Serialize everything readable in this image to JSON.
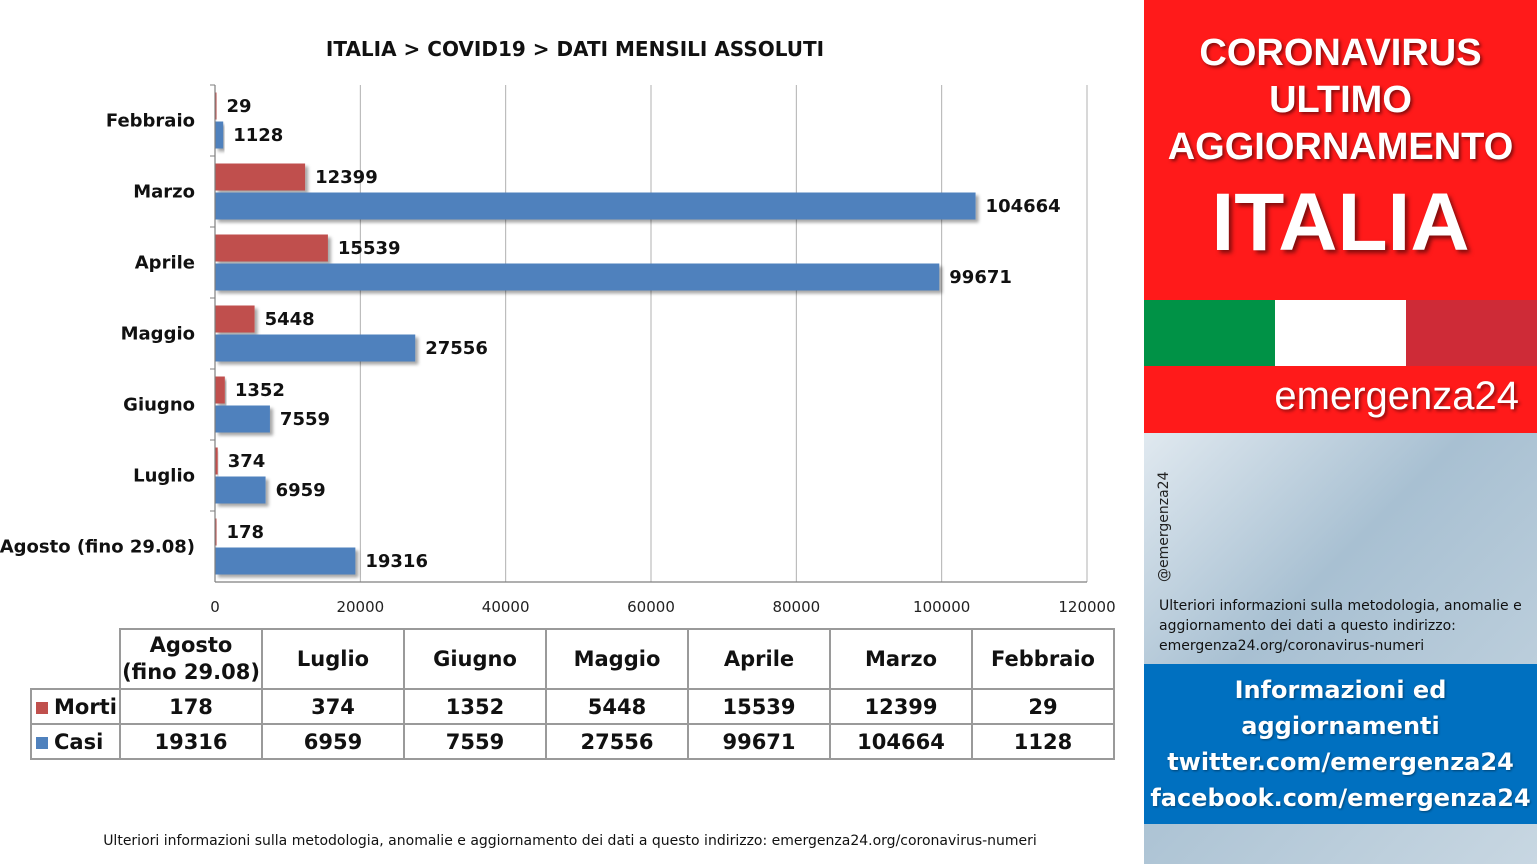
{
  "chart_data": {
    "type": "bar",
    "orientation": "horizontal",
    "title": "ITALIA >  COVID19 > DATI MENSILI  ASSOLUTI",
    "categories": [
      "Febbraio",
      "Marzo",
      "Aprile",
      "Maggio",
      "Giugno",
      "Luglio",
      "Agosto (fino 29.08)"
    ],
    "series": [
      {
        "name": "Morti",
        "color": "#c0504d",
        "values": [
          29,
          12399,
          15539,
          5448,
          1352,
          374,
          178
        ]
      },
      {
        "name": "Casi",
        "color": "#4f81bd",
        "values": [
          1128,
          104664,
          99671,
          27556,
          7559,
          6959,
          19316
        ]
      }
    ],
    "xlim": [
      0,
      120000
    ],
    "x_ticks": [
      "0",
      "20000",
      "40000",
      "60000",
      "80000",
      "100000",
      "120000"
    ],
    "grid": "vertical",
    "legend": "table-below"
  },
  "table": {
    "columns": [
      "Agosto (fino 29.08)",
      "Luglio",
      "Giugno",
      "Maggio",
      "Aprile",
      "Marzo",
      "Febbraio"
    ],
    "rows": [
      {
        "label": "Morti",
        "color": "#c0504d",
        "values": [
          "178",
          "374",
          "1352",
          "5448",
          "15539",
          "12399",
          "29"
        ]
      },
      {
        "label": "Casi",
        "color": "#4f81bd",
        "values": [
          "19316",
          "6959",
          "7559",
          "27556",
          "99671",
          "104664",
          "1128"
        ]
      }
    ]
  },
  "footer_note": "Ulteriori informazioni sulla metodologia, anomalie e aggiornamento dei dati a questo indirizzo: emergenza24.org/coronavirus-numeri",
  "sidebar": {
    "headline_lines": [
      "CORONAVIRUS",
      "ULTIMO",
      "AGGIORNAMENTO"
    ],
    "country": "ITALIA",
    "flag_colors": [
      "#009246",
      "#ffffff",
      "#ce2b37"
    ],
    "brand": "emergenza24",
    "handle": "@emergenza24",
    "note": "Ulteriori informazioni sulla metodologia, anomalie e aggiornamento dei dati a questo indirizzo: emergenza24.org/coronavirus-numeri",
    "info_lines": [
      "Informazioni ed",
      "aggiornamenti",
      "twitter.com/emergenza24",
      "facebook.com/emergenza24"
    ]
  }
}
